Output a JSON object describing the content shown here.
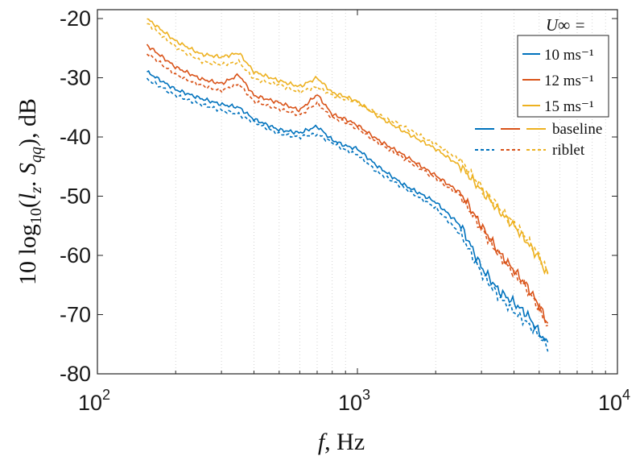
{
  "chart_data": {
    "type": "line",
    "xlabel": "f, Hz",
    "ylabel": "10 log10(lz. Sqq), dB",
    "xscale": "log",
    "xlim": [
      100,
      10000
    ],
    "ylim": [
      -80,
      -18
    ],
    "x_ticks": [
      {
        "base": "10",
        "exp": "2",
        "value": 100
      },
      {
        "base": "10",
        "exp": "3",
        "value": 1000
      },
      {
        "base": "10",
        "exp": "4",
        "value": 10000
      }
    ],
    "y_ticks": [
      "-20",
      "-30",
      "-40",
      "-50",
      "-60",
      "-70",
      "-80"
    ],
    "grid": "vertical minor dotted",
    "legend": {
      "title": "U∞ =",
      "placement": "top-right",
      "entries": [
        "10 ms⁻¹",
        "12 ms⁻¹",
        "15 ms⁻¹"
      ],
      "style_entries": [
        "baseline",
        "riblet"
      ]
    },
    "colors": {
      "10": "#0072BD",
      "12": "#D95319",
      "15": "#EDB120"
    },
    "x": [
      155,
      200,
      250,
      300,
      350,
      400,
      500,
      600,
      700,
      800,
      900,
      1000,
      1200,
      1500,
      2000,
      2500,
      3000,
      3500,
      4000,
      4500,
      5000,
      5400
    ],
    "series": [
      {
        "name": "10 ms⁻¹",
        "style": "baseline",
        "values": [
          -29,
          -32,
          -33.5,
          -34.5,
          -35,
          -37,
          -38.8,
          -39.3,
          -38.2,
          -40.5,
          -41.5,
          -42,
          -45,
          -48,
          -51,
          -55,
          -62,
          -66,
          -68,
          -70,
          -73,
          -75
        ]
      },
      {
        "name": "10 ms⁻¹",
        "style": "riblet",
        "values": [
          -30.2,
          -33,
          -34.5,
          -35.5,
          -36.2,
          -37.5,
          -39.5,
          -40,
          -39.5,
          -41,
          -42.2,
          -43,
          -46,
          -48.5,
          -52,
          -56.5,
          -63,
          -67,
          -69.5,
          -71.5,
          -73.5,
          -75.5
        ]
      },
      {
        "name": "12 ms⁻¹",
        "style": "baseline",
        "values": [
          -24.5,
          -28.2,
          -30.2,
          -31,
          -29.5,
          -33,
          -34.2,
          -35.5,
          -32.8,
          -36.2,
          -37,
          -38,
          -40.5,
          -43,
          -46.5,
          -49.5,
          -55,
          -59.5,
          -62.5,
          -65.2,
          -68.5,
          -71.5
        ]
      },
      {
        "name": "12 ms⁻¹",
        "style": "riblet",
        "values": [
          -25.8,
          -29.5,
          -31.3,
          -32.2,
          -31,
          -34,
          -35.3,
          -36.3,
          -34.3,
          -36.8,
          -37.5,
          -38.6,
          -41,
          -43.5,
          -47,
          -50,
          -55.5,
          -60,
          -63,
          -65.8,
          -69,
          -72
        ]
      },
      {
        "name": "15 ms⁻¹",
        "style": "baseline",
        "values": [
          -20,
          -23.8,
          -26,
          -26.5,
          -25.8,
          -29,
          -30.5,
          -31.5,
          -30,
          -32.5,
          -33.2,
          -34,
          -36.5,
          -39,
          -42,
          -45,
          -49,
          -52.5,
          -55,
          -57.8,
          -60.5,
          -63.5
        ]
      },
      {
        "name": "15 ms⁻¹",
        "style": "riblet",
        "values": [
          -20.8,
          -24.8,
          -27.2,
          -27.8,
          -27.3,
          -30.2,
          -31.2,
          -32.4,
          -31.5,
          -33,
          -33.6,
          -34.2,
          -36.2,
          -38.2,
          -41.2,
          -44,
          -48.5,
          -52,
          -54.6,
          -57.3,
          -60,
          -63
        ]
      }
    ]
  }
}
